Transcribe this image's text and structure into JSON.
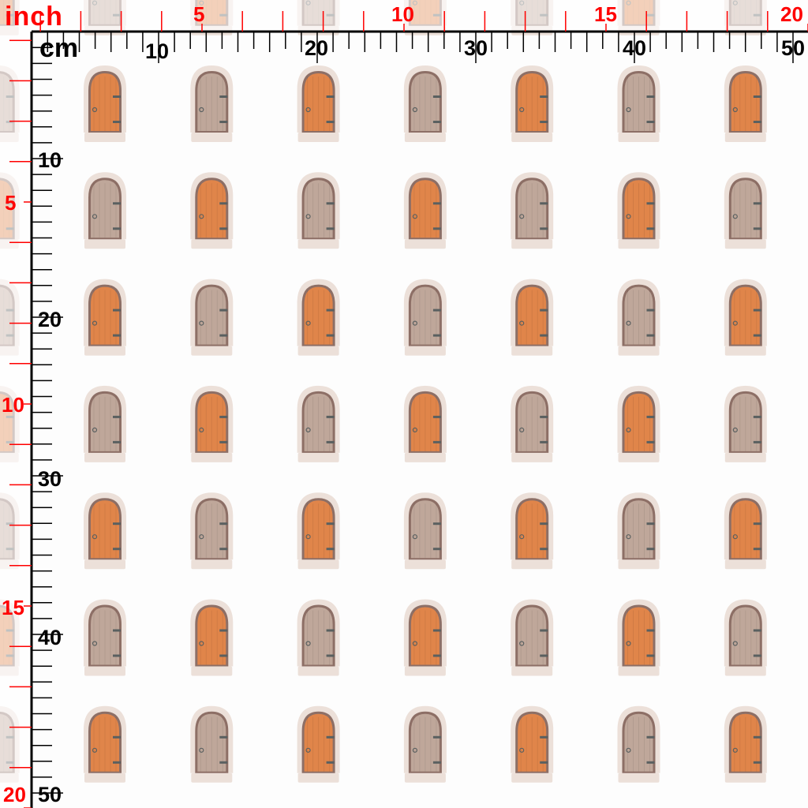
{
  "pattern": {
    "name": "arched doors",
    "colors": {
      "orange_door": "#e0854a",
      "grey_door": "#bfa79a",
      "door_frame": "#8d6f66",
      "stone": "#ece0d9",
      "hinge": "#5a6060",
      "background": "#fdfdfd"
    },
    "row_start": [
      "orange",
      "grey",
      "orange",
      "grey",
      "orange",
      "grey",
      "orange"
    ]
  },
  "rulers": {
    "inch_unit": "inch",
    "cm_unit": "cm",
    "inch_color": "#ff0000",
    "cm_color": "#000000",
    "inch_top_labels": [
      "5",
      "10",
      "15",
      "20"
    ],
    "inch_left_labels": [
      "5",
      "10",
      "15",
      "20"
    ],
    "cm_top_labels": [
      "10",
      "20",
      "30",
      "40",
      "50"
    ],
    "cm_left_labels": [
      "10",
      "20",
      "30",
      "40",
      "50"
    ]
  }
}
